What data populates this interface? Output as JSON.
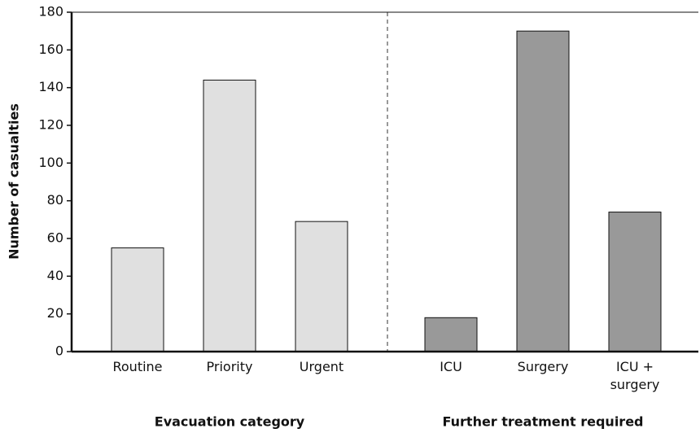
{
  "chart_data": {
    "type": "bar",
    "ylabel": "Number of casualties",
    "ylim": [
      0,
      180
    ],
    "yticks": [
      0,
      20,
      40,
      60,
      80,
      100,
      120,
      140,
      160,
      180
    ],
    "groups": [
      {
        "name": "Evacuation category",
        "color": "#e0e0e0",
        "categories": [
          "Routine",
          "Priority",
          "Urgent"
        ],
        "values": [
          55,
          144,
          69
        ]
      },
      {
        "name": "Further treatment required",
        "color": "#999999",
        "categories": [
          "ICU",
          "Surgery",
          "ICU + surgery"
        ],
        "values": [
          18,
          170,
          74
        ]
      }
    ]
  }
}
